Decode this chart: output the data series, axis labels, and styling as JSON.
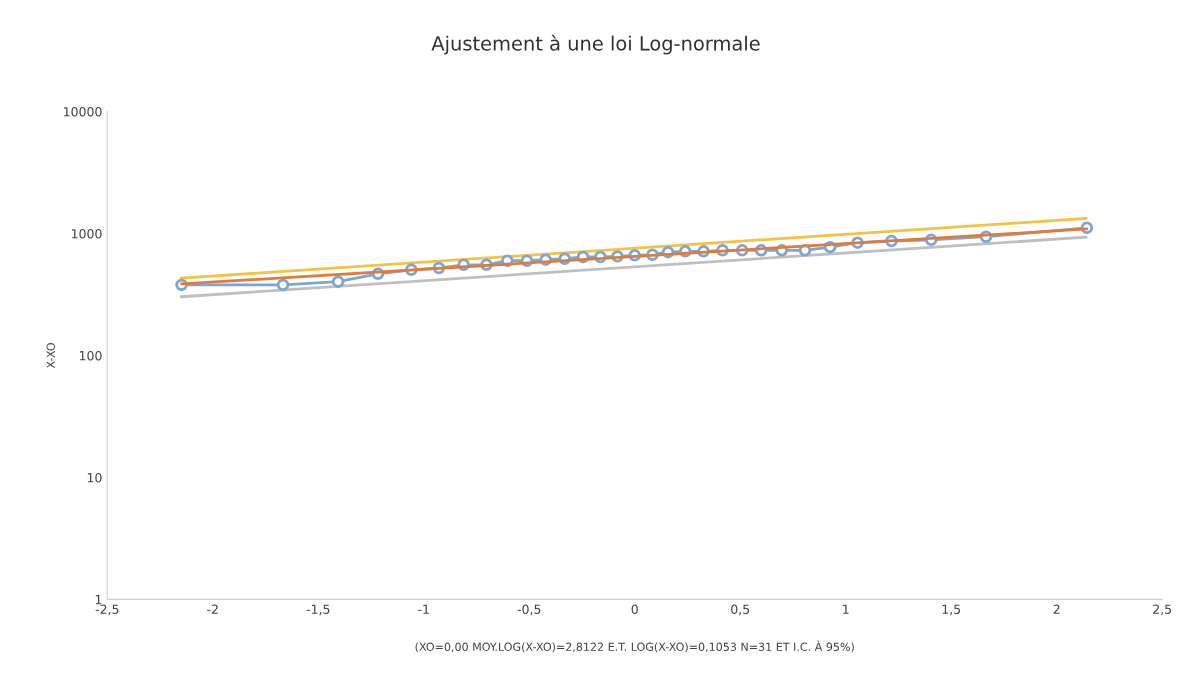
{
  "chart_data": {
    "type": "line",
    "title": "Ajustement à une loi Log-normale",
    "xlabel": "(XO=0,00 MOY.LOG(X-XO)=2,8122 E.T. LOG(X-XO)=0,1053 N=31 ET I.C. À 95%)",
    "ylabel": "X-XO",
    "log": "y",
    "grid": false,
    "xlim": [
      -2.5,
      2.5
    ],
    "ylim": [
      1,
      10000
    ],
    "xticks": [
      {
        "value": -2.5,
        "label": "-2,5"
      },
      -2,
      {
        "value": -1.5,
        "label": "-1,5"
      },
      -1,
      {
        "value": -0.5,
        "label": "-0,5"
      },
      0,
      {
        "value": 0.5,
        "label": "0,5"
      },
      1,
      {
        "value": 1.5,
        "label": "1,5"
      },
      2,
      {
        "value": 2.5,
        "label": "2,5"
      }
    ],
    "yticks": [
      1,
      10,
      100,
      1000,
      10000
    ],
    "series": [
      {
        "color": "#f5c242",
        "x": [
          -2.15,
          2.14
        ],
        "values": [
          430,
          1330
        ],
        "marker": "none"
      },
      {
        "color": "#bfbfbf",
        "x": [
          -2.15,
          2.14
        ],
        "values": [
          303,
          934
        ],
        "marker": "none"
      },
      {
        "color": "#7aa6d8",
        "marker": "circle",
        "x": [
          -2.148,
          -1.667,
          -1.406,
          -1.217,
          -1.059,
          -0.928,
          -0.811,
          -0.703,
          -0.604,
          -0.511,
          -0.422,
          -0.332,
          -0.245,
          -0.163,
          -0.082,
          0,
          0.084,
          0.158,
          0.239,
          0.326,
          0.416,
          0.509,
          0.599,
          0.697,
          0.807,
          0.926,
          1.056,
          1.217,
          1.405,
          1.665,
          2.143
        ],
        "values": [
          379,
          379,
          403,
          467,
          504,
          521,
          554,
          554,
          598,
          598,
          610,
          621,
          642,
          642,
          649,
          662,
          670,
          703,
          714,
          714,
          728,
          728,
          728,
          728,
          728,
          773,
          841,
          868,
          887,
          941,
          1114
        ]
      },
      {
        "color": "#e07b39",
        "x": [
          -2.148,
          2.143
        ],
        "values": [
          386,
          1089
        ],
        "marker": "none"
      }
    ]
  }
}
